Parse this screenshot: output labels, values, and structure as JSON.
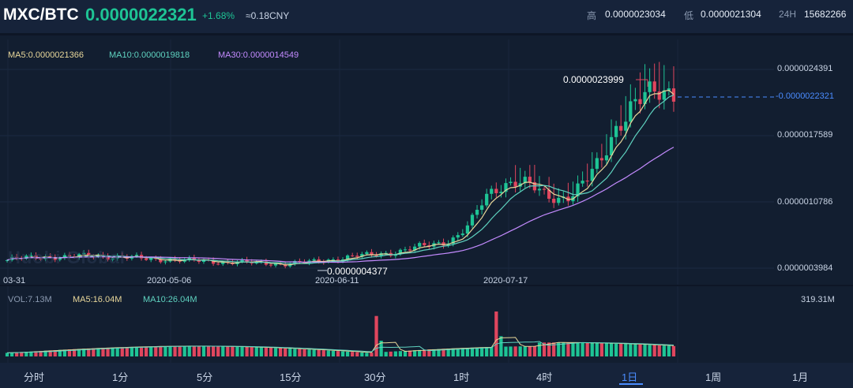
{
  "header": {
    "pair": "MXC/BTC",
    "price": "0.0000022321",
    "change": "+1.68%",
    "cny": "≈0.18CNY",
    "high_label": "高",
    "high_value": "0.0000023034",
    "low_label": "低",
    "low_value": "0.0000021304",
    "vol_label": "24H",
    "vol_value": "15682266"
  },
  "ma_legend": {
    "ma5": "MA5:0.0000021366",
    "ma10": "MA10:0.0000019818",
    "ma30": "MA30:0.0000014549"
  },
  "y_axis": [
    "0.0000024391",
    "0.0000017589",
    "0.0000010786",
    "0.0000003984"
  ],
  "current_price_label": "-0.0000022321",
  "x_axis": [
    "03-31",
    "2020-05-06",
    "2020-06-11",
    "2020-07-17"
  ],
  "annotations": {
    "max": "0.0000023999",
    "min": "0.0000004377"
  },
  "watermark": "Huobi Global",
  "vol_legend": {
    "vol": "VOL:7.13M",
    "ma5": "MA5:16.04M",
    "ma10": "MA10:26.04M",
    "max": "319.31M"
  },
  "tabs": [
    "分时",
    "1分",
    "5分",
    "15分",
    "30分",
    "1时",
    "4时",
    "1日",
    "1周",
    "1月"
  ],
  "active_tab": "1日",
  "colors": {
    "up": "#1ec495",
    "down": "#e0465e",
    "ma5": "#e8d79a",
    "ma10": "#5fd3c0",
    "ma30": "#c48bff",
    "accent": "#4a8cff"
  },
  "chart_data": {
    "type": "candlestick",
    "x_ticks": [
      "03-31",
      "2020-05-06",
      "2020-06-11",
      "2020-07-17"
    ],
    "price_ticks": [
      2.4391e-06,
      1.7589e-06,
      1.0786e-06,
      3.984e-07
    ],
    "price_close_approx": [
      4.8e-07,
      5e-07,
      5.1e-07,
      5.2e-07,
      5.1e-07,
      5.2e-07,
      5.3e-07,
      5.2e-07,
      5.1e-07,
      5e-07,
      4.9e-07,
      4.9e-07,
      4.8e-07,
      4.7e-07,
      4.7e-07,
      4.6e-07,
      4.6e-07,
      4.5e-07,
      4.5e-07,
      4.4e-07,
      4.5e-07,
      4.6e-07,
      4.8e-07,
      5e-07,
      5.2e-07,
      5.3e-07,
      5.5e-07,
      5.7e-07,
      6e-07,
      6.3e-07,
      6.6e-07,
      7.2e-07,
      8.6e-07,
      1.12e-06,
      1.25e-06,
      1.3e-06,
      1.25e-06,
      1.15e-06,
      1.12e-06,
      1.16e-06,
      1.3e-06,
      1.5e-06,
      1.85e-06,
      2.05e-06,
      2.15e-06,
      2.2e-06,
      2.23e-06
    ],
    "max_point": 2.3999e-06,
    "min_point": 4.377e-07,
    "volume_max": "319.31M"
  }
}
